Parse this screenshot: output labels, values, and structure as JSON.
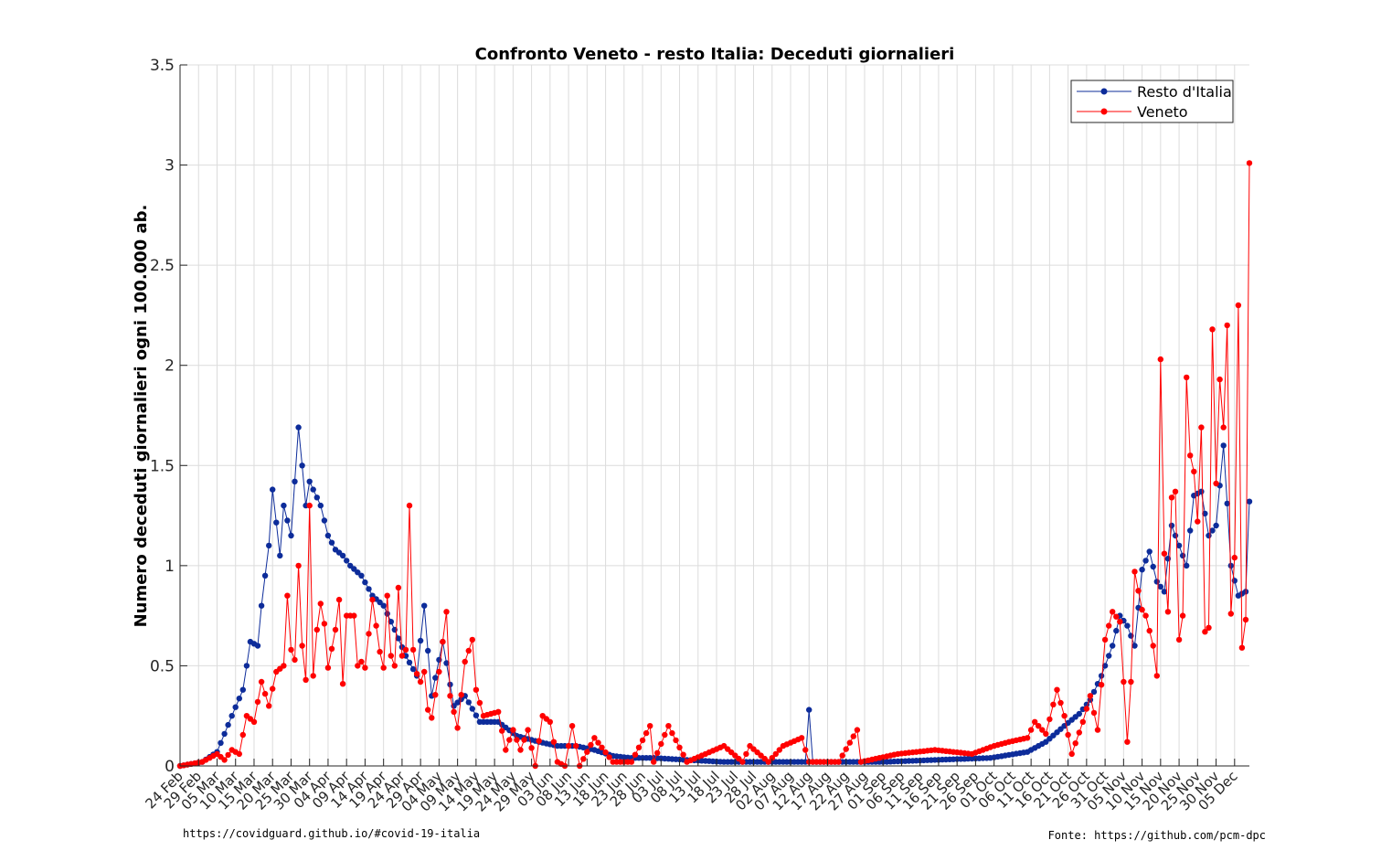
{
  "chart_data": {
    "type": "line",
    "title": "Confronto Veneto - resto Italia: Deceduti giornalieri",
    "ylabel": "Numero deceduti giornalieri ogni 100.000 ab.",
    "xlabel": "",
    "ylim": [
      0,
      3.5
    ],
    "yticks": [
      0,
      0.5,
      1,
      1.5,
      2,
      2.5,
      3,
      3.5
    ],
    "ytick_labels": [
      "0",
      "0.5",
      "1",
      "1.5",
      "2",
      "2.5",
      "3",
      "3.5"
    ],
    "x_start": "2020-02-24",
    "x_end": "2020-12-09",
    "xtick_labels": [
      "24 Feb",
      "29 Feb",
      "05 Mar",
      "10 Mar",
      "15 Mar",
      "20 Mar",
      "25 Mar",
      "30 Mar",
      "04 Apr",
      "09 Apr",
      "14 Apr",
      "19 Apr",
      "24 Apr",
      "29 Apr",
      "04 May",
      "09 May",
      "14 May",
      "19 May",
      "24 May",
      "29 May",
      "03 Jun",
      "08 Jun",
      "13 Jun",
      "18 Jun",
      "23 Jun",
      "28 Jun",
      "03 Jul",
      "08 Jul",
      "13 Jul",
      "18 Jul",
      "23 Jul",
      "28 Jul",
      "02 Aug",
      "07 Aug",
      "12 Aug",
      "17 Aug",
      "22 Aug",
      "27 Aug",
      "01 Sep",
      "06 Sep",
      "11 Sep",
      "16 Sep",
      "21 Sep",
      "26 Sep",
      "01 Oct",
      "06 Oct",
      "11 Oct",
      "16 Oct",
      "21 Oct",
      "26 Oct",
      "31 Oct",
      "05 Nov",
      "10 Nov",
      "15 Nov",
      "20 Nov",
      "25 Nov",
      "30 Nov",
      "05 Dec"
    ],
    "grid": true,
    "legend_position": "top-right",
    "series": [
      {
        "name": "Resto d'Italia",
        "color": "#0d2c9a",
        "keypoints": [
          [
            "2020-02-24",
            0.0
          ],
          [
            "2020-03-01",
            0.02
          ],
          [
            "2020-03-05",
            0.07
          ],
          [
            "2020-03-09",
            0.25
          ],
          [
            "2020-03-12",
            0.38
          ],
          [
            "2020-03-14",
            0.62
          ],
          [
            "2020-03-16",
            0.6
          ],
          [
            "2020-03-17",
            0.8
          ],
          [
            "2020-03-19",
            1.1
          ],
          [
            "2020-03-20",
            1.38
          ],
          [
            "2020-03-22",
            1.05
          ],
          [
            "2020-03-23",
            1.3
          ],
          [
            "2020-03-25",
            1.15
          ],
          [
            "2020-03-27",
            1.69
          ],
          [
            "2020-03-28",
            1.5
          ],
          [
            "2020-03-29",
            1.3
          ],
          [
            "2020-03-30",
            1.42
          ],
          [
            "2020-03-31",
            1.38
          ],
          [
            "2020-04-02",
            1.3
          ],
          [
            "2020-04-04",
            1.15
          ],
          [
            "2020-04-06",
            1.08
          ],
          [
            "2020-04-08",
            1.05
          ],
          [
            "2020-04-10",
            1.0
          ],
          [
            "2020-04-13",
            0.95
          ],
          [
            "2020-04-16",
            0.85
          ],
          [
            "2020-04-19",
            0.8
          ],
          [
            "2020-04-22",
            0.68
          ],
          [
            "2020-04-25",
            0.55
          ],
          [
            "2020-04-28",
            0.45
          ],
          [
            "2020-04-30",
            0.8
          ],
          [
            "2020-05-02",
            0.35
          ],
          [
            "2020-05-05",
            0.62
          ],
          [
            "2020-05-08",
            0.3
          ],
          [
            "2020-05-11",
            0.35
          ],
          [
            "2020-05-15",
            0.22
          ],
          [
            "2020-05-20",
            0.22
          ],
          [
            "2020-05-25",
            0.15
          ],
          [
            "2020-05-31",
            0.12
          ],
          [
            "2020-06-05",
            0.1
          ],
          [
            "2020-06-10",
            0.1
          ],
          [
            "2020-06-15",
            0.08
          ],
          [
            "2020-06-20",
            0.05
          ],
          [
            "2020-06-25",
            0.04
          ],
          [
            "2020-07-01",
            0.04
          ],
          [
            "2020-07-10",
            0.03
          ],
          [
            "2020-07-20",
            0.02
          ],
          [
            "2020-07-30",
            0.02
          ],
          [
            "2020-08-09",
            0.02
          ],
          [
            "2020-08-11",
            0.02
          ],
          [
            "2020-08-12",
            0.28
          ],
          [
            "2020-08-13",
            0.02
          ],
          [
            "2020-08-20",
            0.02
          ],
          [
            "2020-09-01",
            0.02
          ],
          [
            "2020-09-15",
            0.03
          ],
          [
            "2020-09-30",
            0.04
          ],
          [
            "2020-10-10",
            0.07
          ],
          [
            "2020-10-15",
            0.12
          ],
          [
            "2020-10-20",
            0.2
          ],
          [
            "2020-10-24",
            0.26
          ],
          [
            "2020-10-27",
            0.33
          ],
          [
            "2020-10-30",
            0.45
          ],
          [
            "2020-11-02",
            0.6
          ],
          [
            "2020-11-04",
            0.75
          ],
          [
            "2020-11-06",
            0.7
          ],
          [
            "2020-11-08",
            0.6
          ],
          [
            "2020-11-10",
            0.98
          ],
          [
            "2020-11-12",
            1.07
          ],
          [
            "2020-11-14",
            0.92
          ],
          [
            "2020-11-16",
            0.87
          ],
          [
            "2020-11-18",
            1.2
          ],
          [
            "2020-11-20",
            1.1
          ],
          [
            "2020-11-22",
            1.0
          ],
          [
            "2020-11-24",
            1.35
          ],
          [
            "2020-11-26",
            1.37
          ],
          [
            "2020-11-28",
            1.15
          ],
          [
            "2020-11-30",
            1.2
          ],
          [
            "2020-12-02",
            1.6
          ],
          [
            "2020-12-03",
            1.31
          ],
          [
            "2020-12-04",
            1.0
          ],
          [
            "2020-12-06",
            0.85
          ],
          [
            "2020-12-08",
            0.87
          ],
          [
            "2020-12-09",
            1.32
          ]
        ]
      },
      {
        "name": "Veneto",
        "color": "#ff0000",
        "keypoints": [
          [
            "2020-02-24",
            0.0
          ],
          [
            "2020-03-01",
            0.02
          ],
          [
            "2020-03-05",
            0.06
          ],
          [
            "2020-03-07",
            0.03
          ],
          [
            "2020-03-09",
            0.08
          ],
          [
            "2020-03-11",
            0.06
          ],
          [
            "2020-03-13",
            0.25
          ],
          [
            "2020-03-15",
            0.22
          ],
          [
            "2020-03-17",
            0.42
          ],
          [
            "2020-03-19",
            0.3
          ],
          [
            "2020-03-21",
            0.47
          ],
          [
            "2020-03-23",
            0.5
          ],
          [
            "2020-03-24",
            0.85
          ],
          [
            "2020-03-25",
            0.58
          ],
          [
            "2020-03-26",
            0.53
          ],
          [
            "2020-03-27",
            1.0
          ],
          [
            "2020-03-28",
            0.6
          ],
          [
            "2020-03-29",
            0.43
          ],
          [
            "2020-03-30",
            1.3
          ],
          [
            "2020-03-31",
            0.45
          ],
          [
            "2020-04-01",
            0.68
          ],
          [
            "2020-04-02",
            0.81
          ],
          [
            "2020-04-03",
            0.71
          ],
          [
            "2020-04-04",
            0.49
          ],
          [
            "2020-04-06",
            0.68
          ],
          [
            "2020-04-07",
            0.83
          ],
          [
            "2020-04-08",
            0.41
          ],
          [
            "2020-04-09",
            0.75
          ],
          [
            "2020-04-11",
            0.75
          ],
          [
            "2020-04-12",
            0.5
          ],
          [
            "2020-04-13",
            0.52
          ],
          [
            "2020-04-14",
            0.49
          ],
          [
            "2020-04-16",
            0.83
          ],
          [
            "2020-04-18",
            0.57
          ],
          [
            "2020-04-19",
            0.49
          ],
          [
            "2020-04-20",
            0.85
          ],
          [
            "2020-04-21",
            0.55
          ],
          [
            "2020-04-22",
            0.5
          ],
          [
            "2020-04-23",
            0.89
          ],
          [
            "2020-04-24",
            0.55
          ],
          [
            "2020-04-25",
            0.58
          ],
          [
            "2020-04-26",
            1.3
          ],
          [
            "2020-04-27",
            0.58
          ],
          [
            "2020-04-28",
            0.46
          ],
          [
            "2020-04-29",
            0.42
          ],
          [
            "2020-04-30",
            0.47
          ],
          [
            "2020-05-01",
            0.28
          ],
          [
            "2020-05-02",
            0.24
          ],
          [
            "2020-05-04",
            0.47
          ],
          [
            "2020-05-06",
            0.77
          ],
          [
            "2020-05-07",
            0.35
          ],
          [
            "2020-05-09",
            0.19
          ],
          [
            "2020-05-11",
            0.52
          ],
          [
            "2020-05-13",
            0.63
          ],
          [
            "2020-05-14",
            0.38
          ],
          [
            "2020-05-16",
            0.25
          ],
          [
            "2020-05-20",
            0.27
          ],
          [
            "2020-05-22",
            0.08
          ],
          [
            "2020-05-24",
            0.18
          ],
          [
            "2020-05-26",
            0.08
          ],
          [
            "2020-05-28",
            0.18
          ],
          [
            "2020-05-30",
            0.0
          ],
          [
            "2020-06-01",
            0.25
          ],
          [
            "2020-06-03",
            0.22
          ],
          [
            "2020-06-05",
            0.02
          ],
          [
            "2020-06-07",
            0.0
          ],
          [
            "2020-06-09",
            0.2
          ],
          [
            "2020-06-11",
            0.0
          ],
          [
            "2020-06-15",
            0.14
          ],
          [
            "2020-06-20",
            0.02
          ],
          [
            "2020-06-25",
            0.02
          ],
          [
            "2020-06-30",
            0.2
          ],
          [
            "2020-07-01",
            0.02
          ],
          [
            "2020-07-05",
            0.2
          ],
          [
            "2020-07-10",
            0.02
          ],
          [
            "2020-07-20",
            0.1
          ],
          [
            "2020-07-25",
            0.02
          ],
          [
            "2020-07-27",
            0.1
          ],
          [
            "2020-08-01",
            0.02
          ],
          [
            "2020-08-05",
            0.1
          ],
          [
            "2020-08-10",
            0.14
          ],
          [
            "2020-08-12",
            0.02
          ],
          [
            "2020-08-20",
            0.02
          ],
          [
            "2020-08-25",
            0.18
          ],
          [
            "2020-08-26",
            0.02
          ],
          [
            "2020-09-05",
            0.06
          ],
          [
            "2020-09-15",
            0.08
          ],
          [
            "2020-09-25",
            0.06
          ],
          [
            "2020-10-01",
            0.1
          ],
          [
            "2020-10-05",
            0.12
          ],
          [
            "2020-10-10",
            0.14
          ],
          [
            "2020-10-12",
            0.22
          ],
          [
            "2020-10-15",
            0.16
          ],
          [
            "2020-10-18",
            0.38
          ],
          [
            "2020-10-20",
            0.25
          ],
          [
            "2020-10-22",
            0.06
          ],
          [
            "2020-10-25",
            0.22
          ],
          [
            "2020-10-27",
            0.35
          ],
          [
            "2020-10-29",
            0.18
          ],
          [
            "2020-10-31",
            0.63
          ],
          [
            "2020-11-02",
            0.77
          ],
          [
            "2020-11-04",
            0.72
          ],
          [
            "2020-11-06",
            0.12
          ],
          [
            "2020-11-07",
            0.42
          ],
          [
            "2020-11-08",
            0.97
          ],
          [
            "2020-11-10",
            0.78
          ],
          [
            "2020-11-11",
            0.75
          ],
          [
            "2020-11-13",
            0.6
          ],
          [
            "2020-11-14",
            0.45
          ],
          [
            "2020-11-15",
            2.03
          ],
          [
            "2020-11-16",
            1.06
          ],
          [
            "2020-11-17",
            0.77
          ],
          [
            "2020-11-18",
            1.34
          ],
          [
            "2020-11-19",
            1.37
          ],
          [
            "2020-11-20",
            0.63
          ],
          [
            "2020-11-21",
            0.75
          ],
          [
            "2020-11-22",
            1.94
          ],
          [
            "2020-11-23",
            1.55
          ],
          [
            "2020-11-24",
            1.47
          ],
          [
            "2020-11-25",
            1.22
          ],
          [
            "2020-11-26",
            1.69
          ],
          [
            "2020-11-27",
            0.67
          ],
          [
            "2020-11-28",
            0.69
          ],
          [
            "2020-11-29",
            2.18
          ],
          [
            "2020-11-30",
            1.41
          ],
          [
            "2020-12-01",
            1.93
          ],
          [
            "2020-12-02",
            1.69
          ],
          [
            "2020-12-03",
            2.2
          ],
          [
            "2020-12-04",
            0.76
          ],
          [
            "2020-12-05",
            1.04
          ],
          [
            "2020-12-06",
            2.3
          ],
          [
            "2020-12-07",
            0.59
          ],
          [
            "2020-12-08",
            0.73
          ],
          [
            "2020-12-09",
            3.01
          ]
        ]
      }
    ]
  },
  "footer": {
    "left_source": "https://covidguard.github.io/#covid-19-italia",
    "right_source": "Fonte: https://github.com/pcm-dpc"
  }
}
